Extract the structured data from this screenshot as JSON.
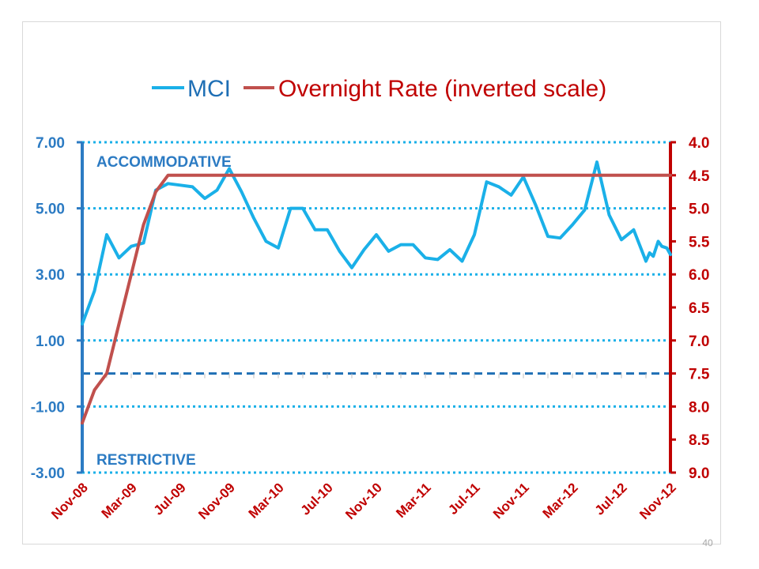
{
  "slide_number": "40",
  "colors": {
    "mci": "#1ab0e8",
    "rate": "#c0504d",
    "left_axis": "#2c7bc3",
    "right_axis": "#c00000",
    "neutral_line": "#1f6fb5"
  },
  "chart_data": {
    "type": "line",
    "legend": {
      "position": "top",
      "entries": [
        "MCI",
        "Overnight Rate (inverted scale)"
      ]
    },
    "annotations": {
      "top": "ACCOMMODATIVE",
      "bottom": "RESTRICTIVE"
    },
    "x_tick_labels": [
      "Nov-08",
      "Mar-09",
      "Jul-09",
      "Nov-09",
      "Mar-10",
      "Jul-10",
      "Nov-10",
      "Mar-11",
      "Jul-11",
      "Nov-11",
      "Mar-12",
      "Jul-12",
      "Nov-12"
    ],
    "x_range": [
      0,
      48
    ],
    "y_left": {
      "min": -3,
      "max": 7,
      "tick_labels": [
        "7.00",
        "5.00",
        "3.00",
        "1.00",
        "-1.00",
        "-3.00"
      ],
      "tick_values": [
        7,
        5,
        3,
        1,
        -1,
        -3
      ],
      "gridlines": "dotted"
    },
    "y_right": {
      "inverted": true,
      "min": 4.0,
      "max": 9.0,
      "tick_labels": [
        "4.0",
        "4.5",
        "5.0",
        "5.5",
        "6.0",
        "6.5",
        "7.0",
        "7.5",
        "8.0",
        "8.5",
        "9.0"
      ],
      "tick_values": [
        4.0,
        4.5,
        5.0,
        5.5,
        6.0,
        6.5,
        7.0,
        7.5,
        8.0,
        8.5,
        9.0
      ]
    },
    "neutral_level": 0.0,
    "series": [
      {
        "name": "MCI",
        "axis": "left",
        "x": [
          0,
          1,
          2,
          3,
          4,
          5,
          6,
          7,
          8,
          9,
          10,
          11,
          12,
          13,
          14,
          15,
          16,
          17,
          18,
          19,
          20,
          21,
          22,
          23,
          24,
          25,
          26,
          27,
          28,
          29,
          30,
          31,
          32,
          33,
          34,
          35,
          36,
          37,
          38,
          39,
          40,
          41,
          42,
          43,
          44,
          45,
          46,
          46.3,
          46.6,
          47,
          47.3,
          47.7,
          48
        ],
        "values": [
          1.5,
          2.5,
          4.2,
          3.5,
          3.85,
          3.95,
          5.55,
          5.75,
          5.7,
          5.65,
          5.3,
          5.55,
          6.2,
          5.5,
          4.7,
          4.0,
          3.8,
          5.0,
          5.0,
          4.35,
          4.35,
          3.7,
          3.2,
          3.75,
          4.2,
          3.7,
          3.9,
          3.9,
          3.5,
          3.45,
          3.75,
          3.4,
          4.2,
          5.8,
          5.65,
          5.4,
          5.95,
          5.1,
          4.15,
          4.1,
          4.5,
          4.95,
          6.4,
          4.8,
          4.05,
          4.35,
          3.4,
          3.65,
          3.55,
          4.0,
          3.85,
          3.8,
          3.6
        ]
      },
      {
        "name": "Overnight Rate (inverted scale)",
        "axis": "right",
        "x": [
          0,
          1,
          2,
          3,
          4,
          5,
          6,
          7,
          8,
          9,
          10,
          11,
          12,
          13,
          14,
          15,
          16,
          17,
          18,
          19,
          20,
          21,
          22,
          23,
          24,
          25,
          26,
          27,
          28,
          29,
          30,
          31,
          32,
          33,
          34,
          35,
          36,
          37,
          38,
          39,
          40,
          41,
          42,
          43,
          44,
          45,
          46,
          47,
          48
        ],
        "values": [
          8.25,
          7.75,
          7.5,
          6.75,
          6.0,
          5.25,
          4.75,
          4.5,
          4.5,
          4.5,
          4.5,
          4.5,
          4.5,
          4.5,
          4.5,
          4.5,
          4.5,
          4.5,
          4.5,
          4.5,
          4.5,
          4.5,
          4.5,
          4.5,
          4.5,
          4.5,
          4.5,
          4.5,
          4.5,
          4.5,
          4.5,
          4.5,
          4.5,
          4.5,
          4.5,
          4.5,
          4.5,
          4.5,
          4.5,
          4.5,
          4.5,
          4.5,
          4.5,
          4.5,
          4.5,
          4.5,
          4.5,
          4.5,
          4.5
        ]
      }
    ]
  }
}
